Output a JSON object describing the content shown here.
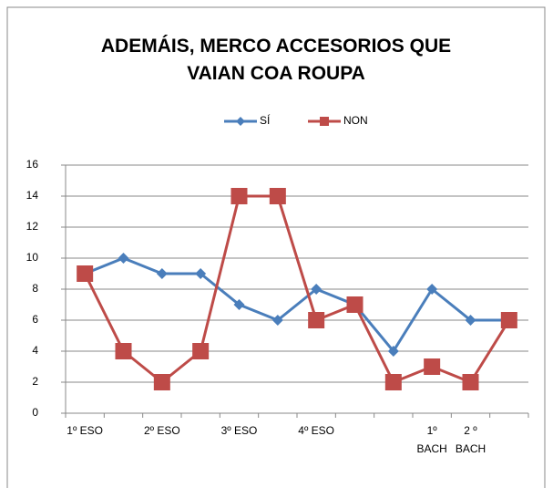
{
  "chart_data": {
    "type": "line",
    "title": "ADEMÁIS, MERCO ACCESORIOS QUE VAIAN COA ROUPA",
    "categories": [
      "1º ESO",
      null,
      "2º ESO",
      null,
      "3º ESO",
      null,
      "4º ESO",
      null,
      null,
      "1º BACH",
      "2 º BACH",
      null
    ],
    "series": [
      {
        "name": "SÍ",
        "color": "#4a7ebb",
        "marker": "diamond",
        "values": [
          9,
          10,
          9,
          9,
          7,
          6,
          8,
          7,
          4,
          8,
          6,
          6
        ]
      },
      {
        "name": "NON",
        "color": "#be4b48",
        "marker": "square",
        "values": [
          9,
          4,
          2,
          4,
          14,
          14,
          6,
          7,
          2,
          3,
          2,
          6
        ]
      }
    ],
    "ylim": [
      0,
      16
    ],
    "yticks": [
      0,
      2,
      4,
      6,
      8,
      10,
      12,
      14,
      16
    ],
    "grid": true,
    "legend": "top"
  }
}
